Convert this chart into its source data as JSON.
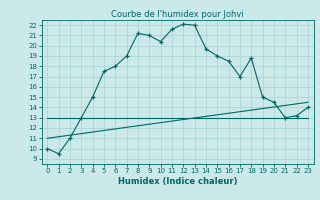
{
  "title": "Courbe de l'humidex pour Johvi",
  "xlabel": "Humidex (Indice chaleur)",
  "bg_color": "#cce9e9",
  "grid_color": "#b0d8d8",
  "line_color": "#006666",
  "xlim": [
    -0.5,
    23.5
  ],
  "ylim": [
    8.5,
    22.5
  ],
  "yticks": [
    9,
    10,
    11,
    12,
    13,
    14,
    15,
    16,
    17,
    18,
    19,
    20,
    21,
    22
  ],
  "xticks": [
    0,
    1,
    2,
    3,
    4,
    5,
    6,
    7,
    8,
    9,
    10,
    11,
    12,
    13,
    14,
    15,
    16,
    17,
    18,
    19,
    20,
    21,
    22,
    23
  ],
  "curve1_x": [
    0,
    1,
    2,
    3,
    4,
    5,
    6,
    7,
    8,
    9,
    10,
    11,
    12,
    13,
    14,
    15,
    16,
    17,
    18,
    19,
    20,
    21,
    22,
    23
  ],
  "curve1_y": [
    10,
    9.5,
    11,
    13,
    15,
    17.5,
    18,
    19,
    21.2,
    21,
    20.4,
    21.6,
    22.1,
    22,
    19.7,
    19,
    18.5,
    17,
    18.8,
    15,
    14.5,
    13,
    13.2,
    14
  ],
  "curve2_x": [
    0,
    23
  ],
  "curve2_y": [
    13,
    13
  ],
  "curve3_x": [
    0,
    23
  ],
  "curve3_y": [
    11,
    14.5
  ]
}
